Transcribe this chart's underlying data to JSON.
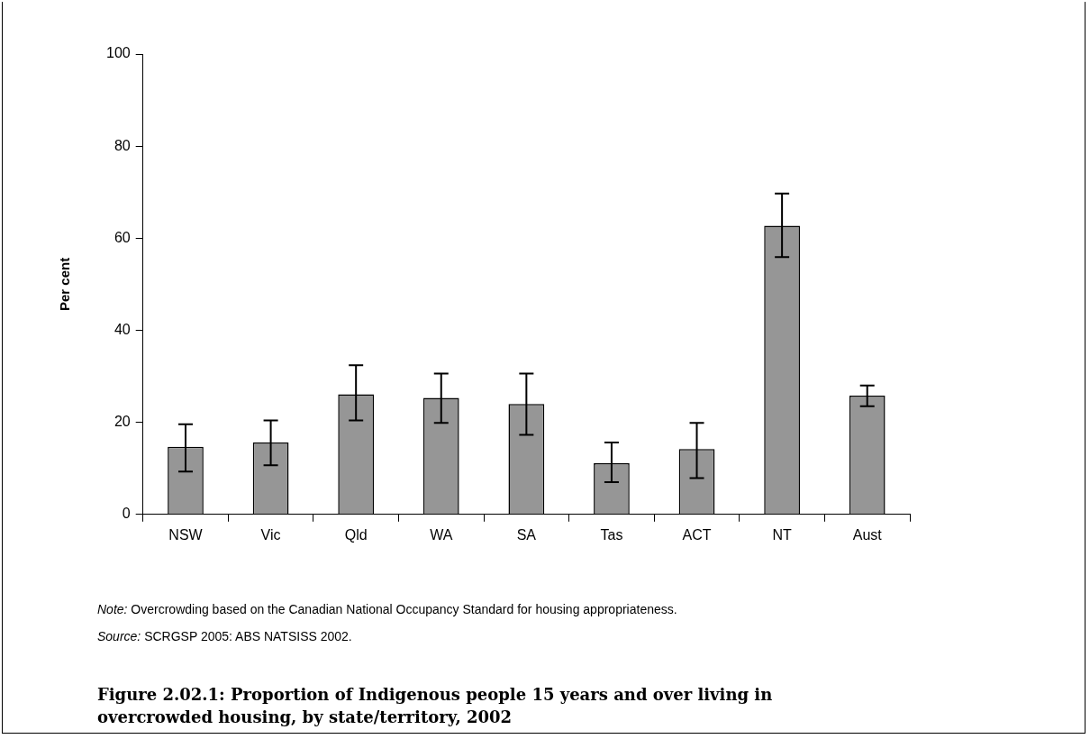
{
  "chart_data": {
    "type": "bar",
    "title": "Figure 2.02.1: Proportion of Indigenous people 15 years and over living in overcrowded housing, by state/territory, 2002",
    "ylabel": "Per cent",
    "categories": [
      "NSW",
      "Vic",
      "Qld",
      "WA",
      "SA",
      "Tas",
      "ACT",
      "NT",
      "Aust"
    ],
    "values": [
      14.7,
      15.6,
      26.1,
      25.3,
      24.0,
      11.1,
      14.2,
      62.7,
      25.8
    ],
    "errors": [
      [
        9.3,
        19.6
      ],
      [
        10.7,
        20.4
      ],
      [
        20.4,
        32.4
      ],
      [
        19.9,
        30.6
      ],
      [
        17.3,
        30.6
      ],
      [
        7.0,
        15.6
      ],
      [
        7.9,
        19.9
      ],
      [
        55.9,
        69.7
      ],
      [
        23.5,
        28.0
      ]
    ],
    "color": "#969696",
    "ylim": [
      0,
      100
    ],
    "yticks": [
      0,
      20,
      40,
      60,
      80,
      100
    ],
    "grid": false,
    "legend": false,
    "annotations": [
      "Note: Overcrowding based on the Canadian National Occupancy Standard for housing appropriateness.",
      "Source: SCRGSP 2005: ABS NATSISS 2002."
    ]
  }
}
